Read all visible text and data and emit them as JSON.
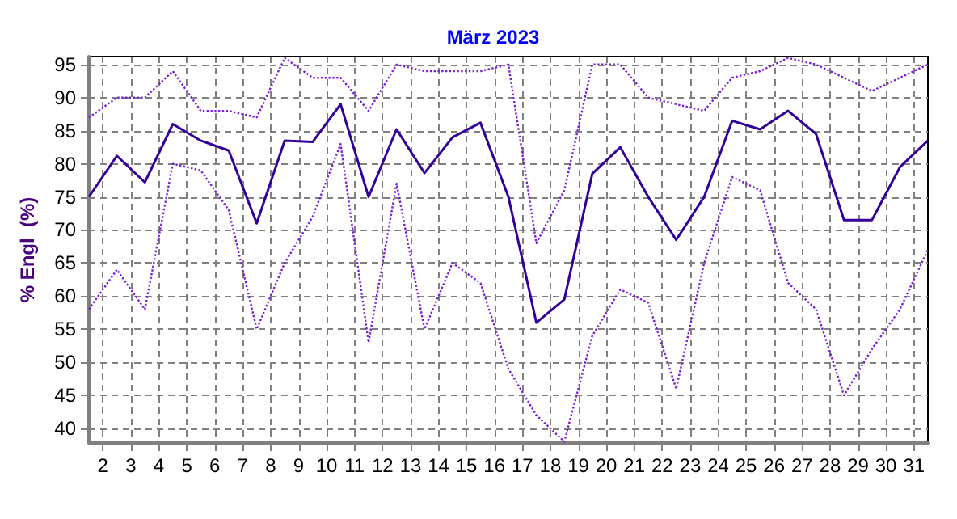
{
  "chart_data": {
    "type": "line",
    "title": "März 2023",
    "ylabel": "% Engl  (%)",
    "x": [
      1.5,
      2.5,
      3.5,
      4.5,
      5.5,
      6.5,
      7.5,
      8.5,
      9.5,
      10.5,
      11.5,
      12.5,
      13.5,
      14.5,
      15.5,
      16.5,
      17.5,
      18.5,
      19.5,
      20.5,
      21.5,
      22.5,
      23.5,
      24.5,
      25.5,
      26.5,
      27.5,
      28.5,
      29.5,
      30.5,
      31.5
    ],
    "series": [
      {
        "color": "#7a1fd6",
        "line_style": "dotted",
        "values": [
          87,
          90,
          90,
          94,
          88,
          88,
          87,
          96,
          93,
          93,
          88,
          95,
          94,
          94,
          94,
          95,
          68,
          76,
          95,
          95,
          90,
          89,
          88,
          93,
          94,
          96,
          95,
          93,
          91,
          93,
          95
        ]
      },
      {
        "color": "#330099",
        "line_style": "solid",
        "values": [
          75,
          81.2,
          77.2,
          86,
          83.5,
          82,
          71,
          83.5,
          83.3,
          89,
          75,
          85.2,
          78.6,
          84,
          86.2,
          75,
          56,
          59.5,
          78.5,
          82.5,
          75,
          68.5,
          75,
          86.5,
          85.2,
          88,
          84.5,
          71.5,
          71.5,
          79.5,
          83.5
        ]
      },
      {
        "color": "#7a1fd6",
        "line_style": "dotted",
        "values": [
          58,
          64,
          58,
          80,
          79,
          73,
          55,
          65,
          72,
          83,
          53,
          77,
          55,
          65,
          62,
          49,
          42,
          38,
          54,
          61,
          59,
          46,
          65,
          78,
          76,
          62,
          58,
          45,
          52,
          58,
          67
        ]
      }
    ],
    "xlim": [
      1.5,
      31.5
    ],
    "xticks": [
      2,
      3,
      4,
      5,
      6,
      7,
      8,
      9,
      10,
      11,
      12,
      13,
      14,
      15,
      16,
      17,
      18,
      19,
      20,
      21,
      22,
      23,
      24,
      25,
      26,
      27,
      28,
      29,
      30,
      31
    ],
    "ylim": [
      37.8,
      96.2
    ],
    "yticks": [
      40,
      45,
      50,
      55,
      60,
      65,
      70,
      75,
      80,
      85,
      90,
      95
    ],
    "grid": true,
    "marker": "none"
  }
}
